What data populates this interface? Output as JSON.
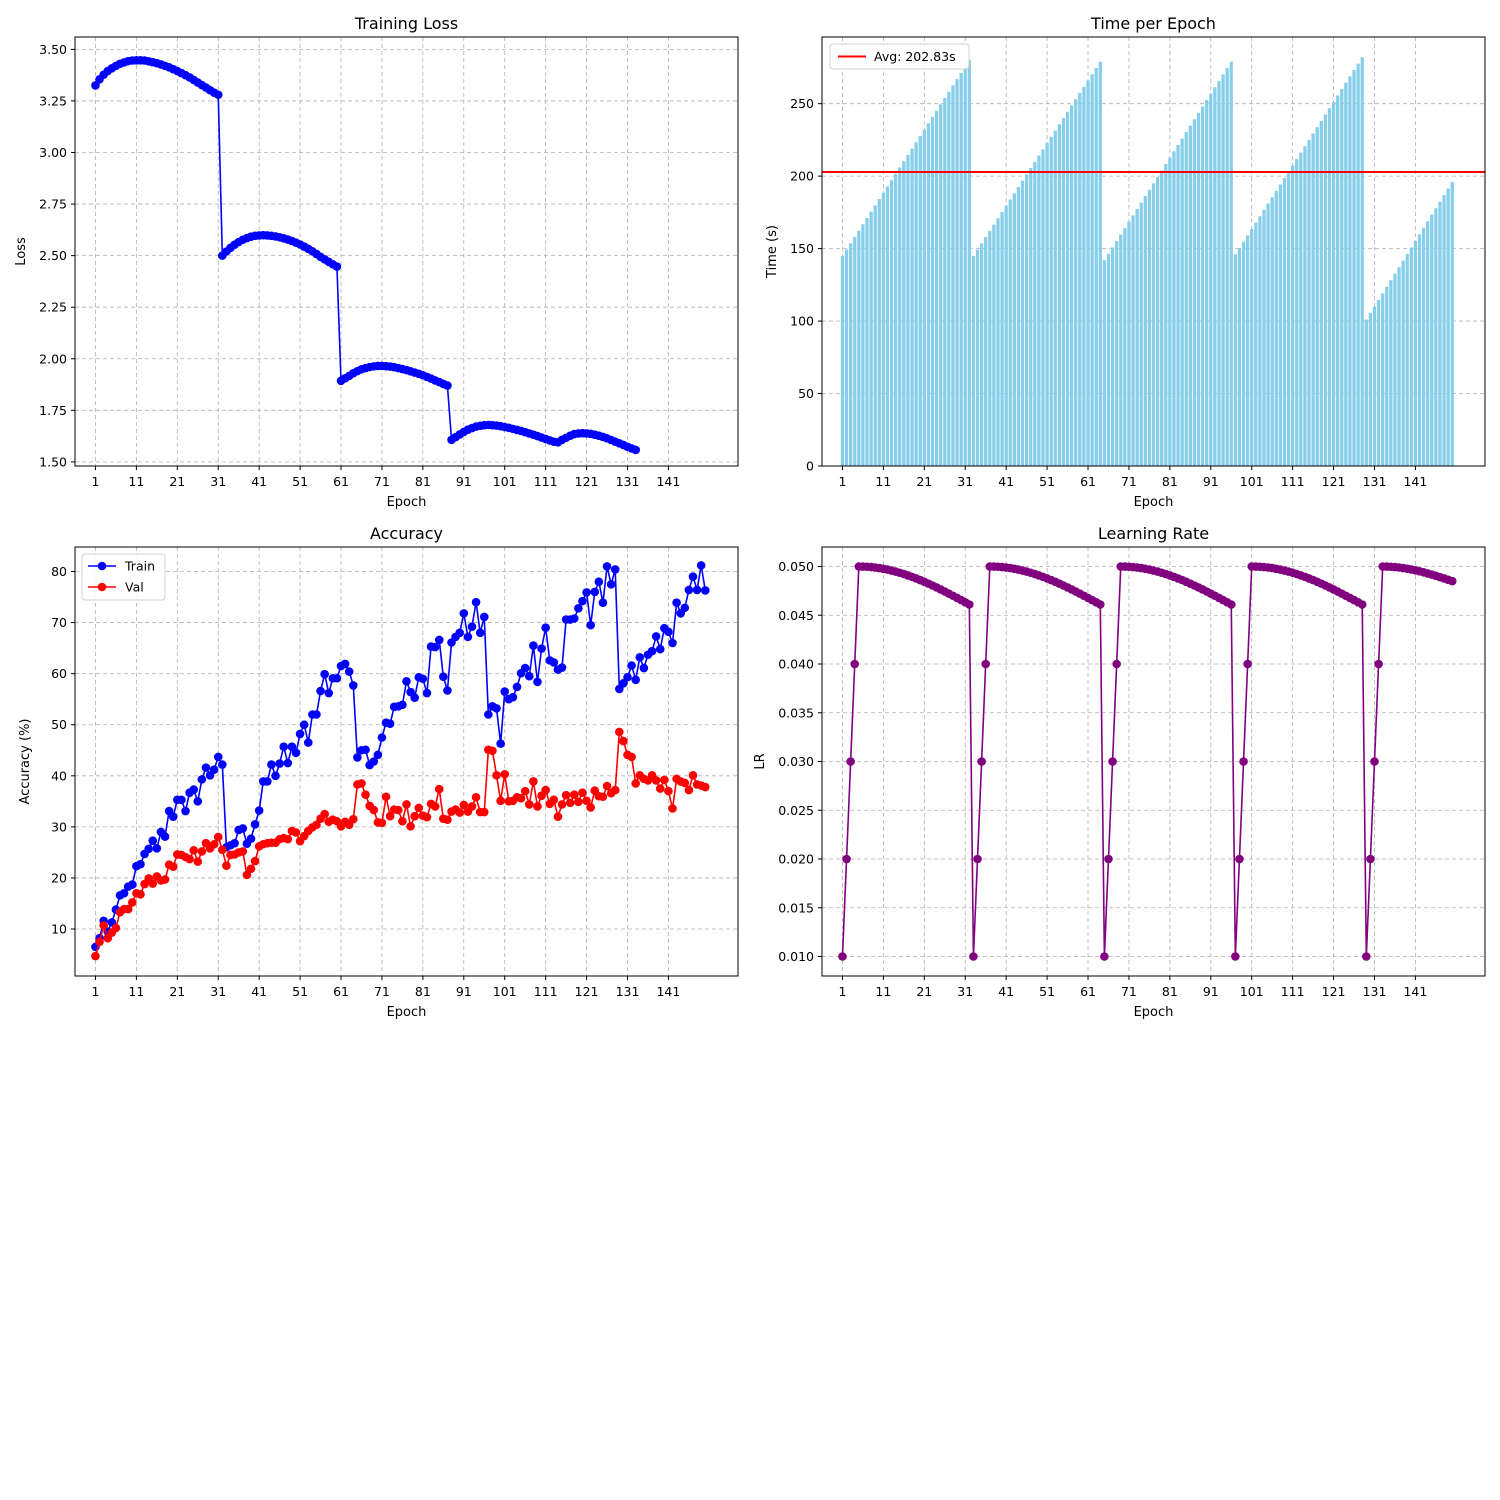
{
  "chart_data": [
    {
      "id": "loss",
      "type": "line",
      "title": "Training Loss",
      "xlabel": "Epoch",
      "ylabel": "Loss",
      "xlim": [
        -4,
        158
      ],
      "ylim": [
        1.48,
        3.56
      ],
      "xticks": [
        1,
        11,
        21,
        31,
        41,
        51,
        61,
        71,
        81,
        91,
        101,
        111,
        121,
        131,
        141
      ],
      "yticks": [
        1.5,
        1.75,
        2.0,
        2.25,
        2.5,
        2.75,
        3.0,
        3.25,
        3.5
      ],
      "ytick_labels": [
        "1.50",
        "1.75",
        "2.00",
        "2.25",
        "2.50",
        "2.75",
        "3.00",
        "3.25",
        "3.50"
      ],
      "grid": true,
      "series": [
        {
          "color": "#0000ff",
          "marker": "o",
          "x_start": 1,
          "values": [
            3.325,
            3.355,
            3.377,
            3.395,
            3.408,
            3.42,
            3.43,
            3.437,
            3.443,
            3.446,
            3.447,
            3.447,
            3.446,
            3.442,
            3.438,
            3.433,
            3.427,
            3.42,
            3.413,
            3.404,
            3.395,
            3.385,
            3.375,
            3.364,
            3.352,
            3.339,
            3.327,
            3.315,
            3.302,
            3.29,
            3.28,
            2.5,
            2.52,
            2.538,
            2.553,
            2.566,
            2.577,
            2.585,
            2.592,
            2.596,
            2.598,
            2.599,
            2.598,
            2.596,
            2.593,
            2.589,
            2.584,
            2.578,
            2.571,
            2.563,
            2.554,
            2.544,
            2.533,
            2.521,
            2.508,
            2.494,
            2.482,
            2.47,
            2.458,
            2.447,
            1.893,
            1.905,
            1.917,
            1.93,
            1.94,
            1.949,
            1.955,
            1.96,
            1.963,
            1.965,
            1.965,
            1.964,
            1.962,
            1.959,
            1.955,
            1.95,
            1.945,
            1.939,
            1.933,
            1.927,
            1.92,
            1.912,
            1.904,
            1.895,
            1.887,
            1.878,
            1.87,
            1.607,
            1.62,
            1.633,
            1.645,
            1.656,
            1.664,
            1.671,
            1.675,
            1.678,
            1.679,
            1.678,
            1.676,
            1.673,
            1.669,
            1.665,
            1.66,
            1.655,
            1.65,
            1.644,
            1.638,
            1.632,
            1.625,
            1.618,
            1.611,
            1.604,
            1.598,
            1.595,
            1.607,
            1.617,
            1.627,
            1.635,
            1.638,
            1.639,
            1.638,
            1.636,
            1.632,
            1.627,
            1.621,
            1.614,
            1.606,
            1.598,
            1.59,
            1.582,
            1.573,
            1.565,
            1.558
          ]
        }
      ]
    },
    {
      "id": "time",
      "type": "bar",
      "title": "Time per Epoch",
      "xlabel": "Epoch",
      "ylabel": "Time (s)",
      "xlim": [
        -4,
        158
      ],
      "ylim": [
        0,
        296
      ],
      "xticks": [
        1,
        11,
        21,
        31,
        41,
        51,
        61,
        71,
        81,
        91,
        101,
        111,
        121,
        131,
        141
      ],
      "yticks": [
        0,
        50,
        100,
        150,
        200,
        250
      ],
      "ytick_labels": [
        "0",
        "50",
        "100",
        "150",
        "200",
        "250"
      ],
      "grid": true,
      "bar_color": "#87ceeb",
      "x_start": 1,
      "segments": [
        {
          "count": 32,
          "start": 145,
          "end": 280
        },
        {
          "count": 32,
          "start": 145,
          "end": 279
        },
        {
          "count": 32,
          "start": 142,
          "end": 279
        },
        {
          "count": 32,
          "start": 146,
          "end": 282
        },
        {
          "count": 22,
          "start": 101,
          "end": 196
        }
      ],
      "hline": {
        "value": 202.83,
        "color": "#ff0000",
        "label": "Avg: 202.83s"
      },
      "legend_loc": "upper left"
    },
    {
      "id": "accuracy",
      "type": "line",
      "title": "Accuracy",
      "xlabel": "Epoch",
      "ylabel": "Accuracy (%)",
      "xlim": [
        -4,
        158
      ],
      "ylim": [
        0.8,
        84.8
      ],
      "xticks": [
        1,
        11,
        21,
        31,
        41,
        51,
        61,
        71,
        81,
        91,
        101,
        111,
        121,
        131,
        141
      ],
      "yticks": [
        10,
        20,
        30,
        40,
        50,
        60,
        70,
        80
      ],
      "ytick_labels": [
        "10",
        "20",
        "30",
        "40",
        "50",
        "60",
        "70",
        "80"
      ],
      "grid": true,
      "legend_loc": "upper left",
      "series": [
        {
          "name": "Train",
          "color": "#0000ff",
          "marker": "o",
          "x_start": 1,
          "values": [
            6.5,
            8.2,
            11.6,
            9.5,
            11.3,
            13.8,
            16.6,
            17.0,
            18.3,
            18.7,
            22.3,
            22.7,
            24.7,
            25.7,
            27.3,
            25.8,
            29.0,
            28.1,
            33.1,
            32.0,
            35.3,
            35.3,
            33.1,
            36.7,
            37.3,
            35.0,
            39.3,
            41.6,
            40.1,
            41.2,
            43.7,
            42.2,
            26.0,
            26.4,
            26.8,
            29.4,
            29.7,
            26.7,
            27.7,
            30.5,
            33.2,
            38.9,
            38.9,
            42.2,
            40.0,
            42.4,
            45.7,
            42.5,
            45.7,
            44.5,
            48.2,
            50.0,
            46.5,
            52.0,
            52.0,
            56.6,
            59.9,
            56.2,
            59.1,
            59.1,
            61.5,
            61.9,
            60.4,
            57.7,
            43.6,
            45.0,
            45.1,
            42.1,
            42.8,
            44.1,
            47.5,
            50.4,
            50.2,
            53.5,
            53.6,
            53.9,
            58.5,
            56.4,
            55.3,
            59.3,
            59.0,
            56.2,
            65.3,
            65.2,
            66.6,
            59.4,
            56.7,
            66.1,
            67.2,
            68.0,
            71.8,
            67.2,
            69.2,
            74.0,
            68.0,
            71.1,
            52.0,
            53.6,
            53.2,
            46.3,
            56.5,
            55.0,
            55.4,
            57.4,
            60.1,
            61.1,
            59.5,
            65.5,
            58.4,
            64.9,
            69.0,
            62.6,
            62.2,
            60.8,
            61.2,
            70.6,
            70.6,
            70.8,
            72.8,
            74.2,
            75.9,
            69.5,
            76.0,
            78.0,
            73.9,
            81.0,
            77.5,
            80.4,
            57.0,
            58.1,
            59.3,
            61.6,
            58.8,
            63.2,
            61.1,
            63.7,
            64.4,
            67.3,
            64.8,
            68.9,
            68.2,
            66.0,
            73.9,
            71.8,
            72.9,
            76.4,
            79.0,
            76.4,
            81.2,
            76.3
          ]
        },
        {
          "name": "Val",
          "color": "#ff0000",
          "marker": "o",
          "x_start": 1,
          "values": [
            4.7,
            7.5,
            10.7,
            8.2,
            9.3,
            10.2,
            13.3,
            13.9,
            13.9,
            15.2,
            17.0,
            16.8,
            18.8,
            19.9,
            18.9,
            20.3,
            19.5,
            19.7,
            22.6,
            22.2,
            24.6,
            24.5,
            24.1,
            23.7,
            25.4,
            23.2,
            25.2,
            26.8,
            25.8,
            26.6,
            28.0,
            25.5,
            22.4,
            24.5,
            24.6,
            25.0,
            25.2,
            20.6,
            21.8,
            23.3,
            26.2,
            26.6,
            26.8,
            26.9,
            26.9,
            27.6,
            27.8,
            27.6,
            29.2,
            28.9,
            27.2,
            28.2,
            29.2,
            29.9,
            30.4,
            31.6,
            32.5,
            31.0,
            31.4,
            31.1,
            30.1,
            31.0,
            30.4,
            31.5,
            38.3,
            38.5,
            36.3,
            34.1,
            33.3,
            30.9,
            30.8,
            35.9,
            32.1,
            33.4,
            33.3,
            31.1,
            34.4,
            30.1,
            32.1,
            33.7,
            32.2,
            31.9,
            34.5,
            34.0,
            37.4,
            31.6,
            31.4,
            33.0,
            33.4,
            32.8,
            34.3,
            33.0,
            34.0,
            35.8,
            32.9,
            32.9,
            45.1,
            44.9,
            40.1,
            35.1,
            40.3,
            35.0,
            35.1,
            35.8,
            35.6,
            37.0,
            34.4,
            38.9,
            34.0,
            36.1,
            37.2,
            34.5,
            35.3,
            32.0,
            34.4,
            36.2,
            34.7,
            36.3,
            34.9,
            36.7,
            35.1,
            33.8,
            37.1,
            36.0,
            35.9,
            38.0,
            36.6,
            37.2,
            48.6,
            46.8,
            44.1,
            43.7,
            38.5,
            40.1,
            39.4,
            39.1,
            40.1,
            39.1,
            37.5,
            39.2,
            37.0,
            33.6,
            39.4,
            38.9,
            38.6,
            37.2,
            40.1,
            38.3,
            38.1,
            37.8
          ]
        }
      ]
    },
    {
      "id": "lr",
      "type": "line",
      "title": "Learning Rate",
      "xlabel": "Epoch",
      "ylabel": "LR",
      "xlim": [
        -4,
        158
      ],
      "ylim": [
        0.008,
        0.052
      ],
      "xticks": [
        1,
        11,
        21,
        31,
        41,
        51,
        61,
        71,
        81,
        91,
        101,
        111,
        121,
        131,
        141
      ],
      "yticks": [
        0.01,
        0.015,
        0.02,
        0.025,
        0.03,
        0.035,
        0.04,
        0.045,
        0.05
      ],
      "ytick_labels": [
        "0.010",
        "0.015",
        "0.020",
        "0.025",
        "0.030",
        "0.035",
        "0.040",
        "0.045",
        "0.050"
      ],
      "grid": true,
      "series": [
        {
          "color": "#800080",
          "marker": "o",
          "x_start": 1,
          "cycles": [
            {
              "count": 32,
              "warmup": [
                0.01,
                0.02,
                0.03,
                0.04
              ],
              "peak": 0.05,
              "end": 0.0461
            },
            {
              "count": 32,
              "warmup": [
                0.01,
                0.02,
                0.03,
                0.04
              ],
              "peak": 0.05,
              "end": 0.0461
            },
            {
              "count": 32,
              "warmup": [
                0.01,
                0.02,
                0.03,
                0.04
              ],
              "peak": 0.05,
              "end": 0.0461
            },
            {
              "count": 32,
              "warmup": [
                0.01,
                0.02,
                0.03,
                0.04
              ],
              "peak": 0.05,
              "end": 0.0461
            },
            {
              "count": 22,
              "warmup": [
                0.01,
                0.02,
                0.03,
                0.04
              ],
              "peak": 0.05,
              "end": 0.0485
            }
          ]
        }
      ]
    }
  ]
}
